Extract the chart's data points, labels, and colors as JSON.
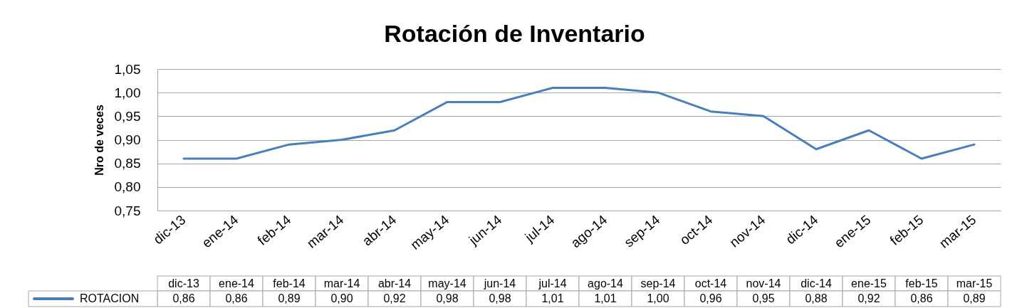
{
  "chart_data": {
    "type": "line",
    "title": "Rotación de Inventario",
    "ylabel": "Nro de veces",
    "categories": [
      "dic-13",
      "ene-14",
      "feb-14",
      "mar-14",
      "abr-14",
      "may-14",
      "jun-14",
      "jul-14",
      "ago-14",
      "sep-14",
      "oct-14",
      "nov-14",
      "dic-14",
      "ene-15",
      "feb-15",
      "mar-15"
    ],
    "series": [
      {
        "name": "ROTACION",
        "color": "#4a7ebb",
        "values": [
          0.86,
          0.86,
          0.89,
          0.9,
          0.92,
          0.98,
          0.98,
          1.01,
          1.01,
          1.0,
          0.96,
          0.95,
          0.88,
          0.92,
          0.86,
          0.89
        ],
        "value_labels": [
          "0,86",
          "0,86",
          "0,89",
          "0,90",
          "0,92",
          "0,98",
          "0,98",
          "1,01",
          "1,01",
          "1,00",
          "0,96",
          "0,95",
          "0,88",
          "0,92",
          "0,86",
          "0,89"
        ]
      }
    ],
    "ylim": [
      0.75,
      1.05
    ],
    "yticks": [
      {
        "value": 0.75,
        "label": "0,75"
      },
      {
        "value": 0.8,
        "label": "0,80"
      },
      {
        "value": 0.85,
        "label": "0,85"
      },
      {
        "value": 0.9,
        "label": "0,90"
      },
      {
        "value": 0.95,
        "label": "0,95"
      },
      {
        "value": 1.0,
        "label": "1,00"
      },
      {
        "value": 1.05,
        "label": "1,05"
      }
    ],
    "grid": "y",
    "legend": "bottom left",
    "line_style": "solid"
  }
}
